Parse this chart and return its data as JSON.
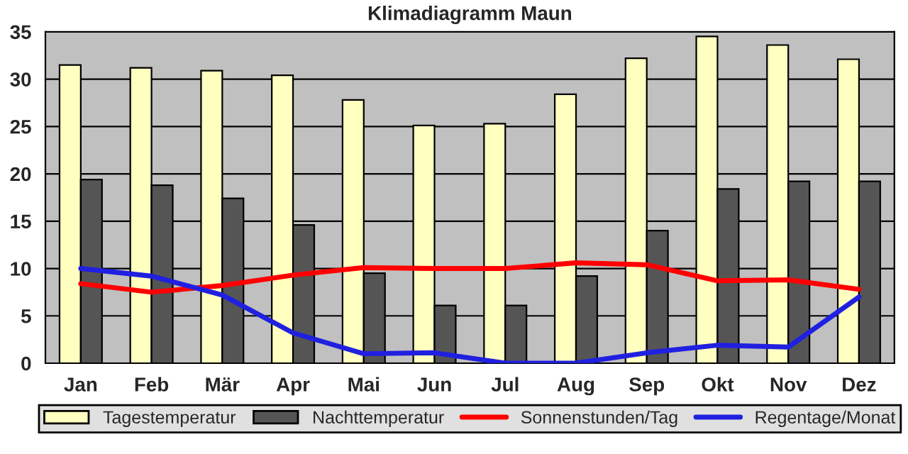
{
  "chart_data": {
    "type": "bar",
    "title": "Klimadiagramm Maun",
    "categories": [
      "Jan",
      "Feb",
      "Mär",
      "Apr",
      "Mai",
      "Jun",
      "Jul",
      "Aug",
      "Sep",
      "Okt",
      "Nov",
      "Dez"
    ],
    "series": [
      {
        "name": "Tagestemperatur",
        "color": "#ffffc0",
        "values": [
          31.5,
          31.2,
          30.9,
          30.4,
          27.8,
          25.1,
          25.3,
          28.4,
          32.2,
          34.5,
          33.6,
          32.1
        ]
      },
      {
        "name": "Nachttemperatur",
        "color": "#555555",
        "values": [
          19.4,
          18.8,
          17.4,
          14.6,
          9.5,
          6.1,
          6.1,
          9.2,
          14.0,
          18.4,
          19.2,
          19.2
        ]
      },
      {
        "name": "Sonnenstunden/Tag",
        "type": "line",
        "color": "#ff0000",
        "values": [
          8.4,
          7.5,
          8.2,
          9.3,
          10.1,
          10.0,
          10.0,
          10.6,
          10.4,
          8.7,
          8.8,
          7.8
        ]
      },
      {
        "name": "Regentage/Monat",
        "type": "line",
        "color": "#2020e0",
        "values": [
          10.0,
          9.2,
          7.2,
          3.2,
          1.0,
          1.1,
          0.0,
          0.0,
          1.1,
          1.9,
          1.7,
          7.0
        ]
      }
    ],
    "ylim": [
      0,
      35
    ],
    "yticks": [
      0,
      5,
      10,
      15,
      20,
      25,
      30,
      35
    ],
    "grid": "y",
    "legend": "bottom"
  }
}
